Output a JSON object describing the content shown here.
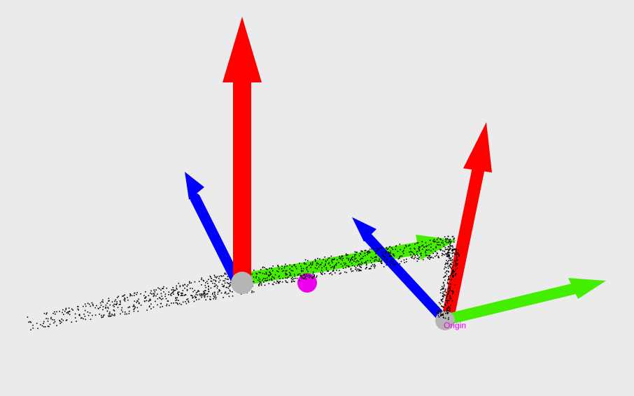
{
  "scene": {
    "origin_label": "Origin",
    "colors": {
      "background": "#ebebeb",
      "x_axis": "#ff0000",
      "y_axis": "#44ee00",
      "z_axis": "#0000ff",
      "joint_sphere": "#b8b8b8",
      "marker": "#ee00ee",
      "points": "#000000"
    },
    "frames": [
      "link-frame",
      "origin-frame"
    ],
    "point_cloud": {
      "description_count": 1200
    }
  }
}
